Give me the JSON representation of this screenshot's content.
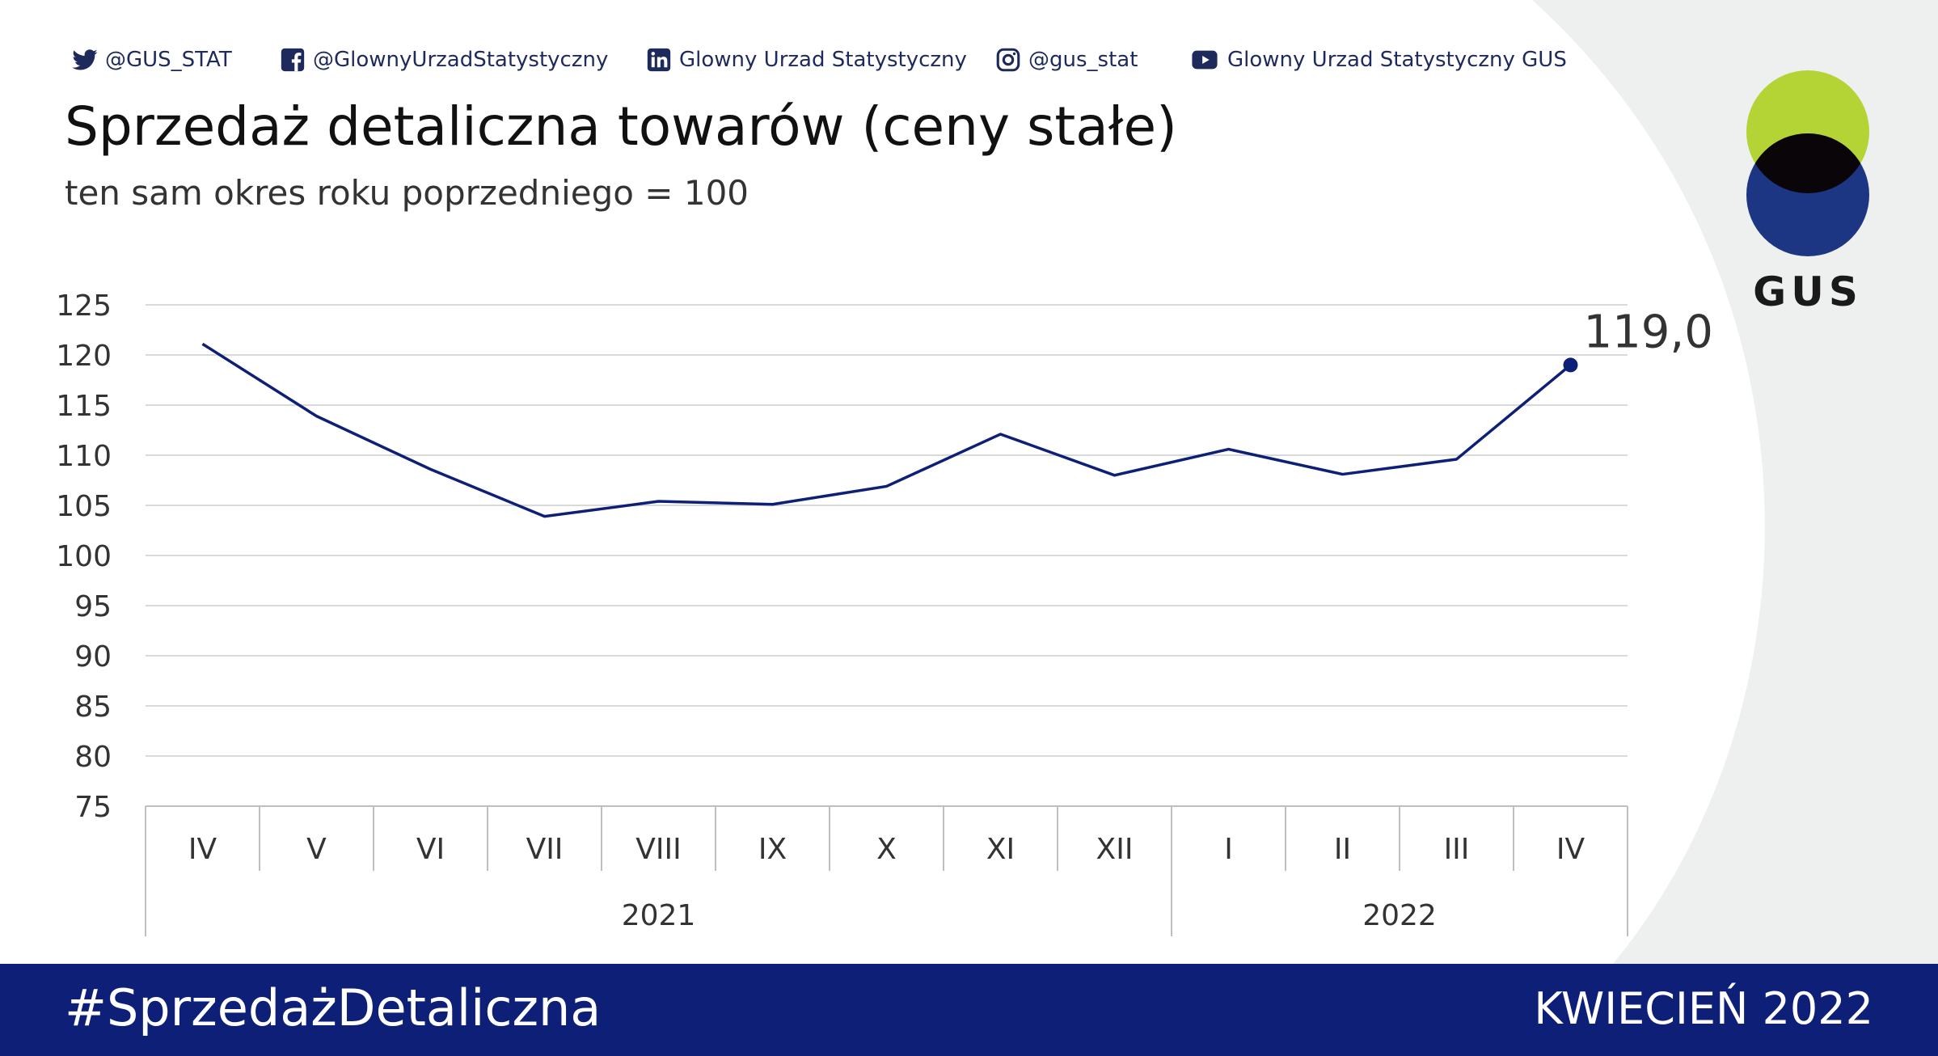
{
  "social": [
    {
      "icon": "twitter-icon",
      "label": "@GUS_STAT"
    },
    {
      "icon": "facebook-icon",
      "label": "@GlownyUrzadStatystyczny"
    },
    {
      "icon": "linkedin-icon",
      "label": "Glowny Urzad Statystyczny"
    },
    {
      "icon": "instagram-icon",
      "label": "@gus_stat"
    },
    {
      "icon": "youtube-icon",
      "label": "Glowny Urzad Statystyczny GUS"
    }
  ],
  "header": {
    "title": "Sprzedaż detaliczna towarów (ceny stałe)",
    "subtitle": "ten sam okres roku poprzedniego = 100"
  },
  "logo": {
    "text": "GUS",
    "colors": {
      "top": "#b4d334",
      "bottom": "#1d3683",
      "overlap": "#0a0508"
    }
  },
  "colors": {
    "line": "#0e1f77",
    "footer": "#0e1f77",
    "grid": "#d9d9d9",
    "background_shape": "#eef0ef"
  },
  "chart_data": {
    "type": "line",
    "categories": [
      "IV",
      "V",
      "VI",
      "VII",
      "VIII",
      "IX",
      "X",
      "XI",
      "XII",
      "I",
      "II",
      "III",
      "IV"
    ],
    "groups": [
      {
        "label": "2021",
        "span": 9
      },
      {
        "label": "2022",
        "span": 4
      }
    ],
    "series": [
      {
        "values": [
          121.1,
          113.9,
          108.6,
          103.9,
          105.4,
          105.1,
          106.9,
          112.1,
          108.0,
          110.6,
          108.1,
          109.6,
          119.0
        ]
      }
    ],
    "ylim": [
      75,
      125
    ],
    "yticks": [
      "125",
      "120",
      "115",
      "110",
      "105",
      "100",
      "95",
      "90",
      "85",
      "80",
      "75"
    ],
    "last_label": "119,0",
    "grid": true,
    "legend": "none"
  },
  "footer": {
    "hashtag": "#SprzedażDetaliczna",
    "period": "KWIECIEŃ 2022"
  }
}
